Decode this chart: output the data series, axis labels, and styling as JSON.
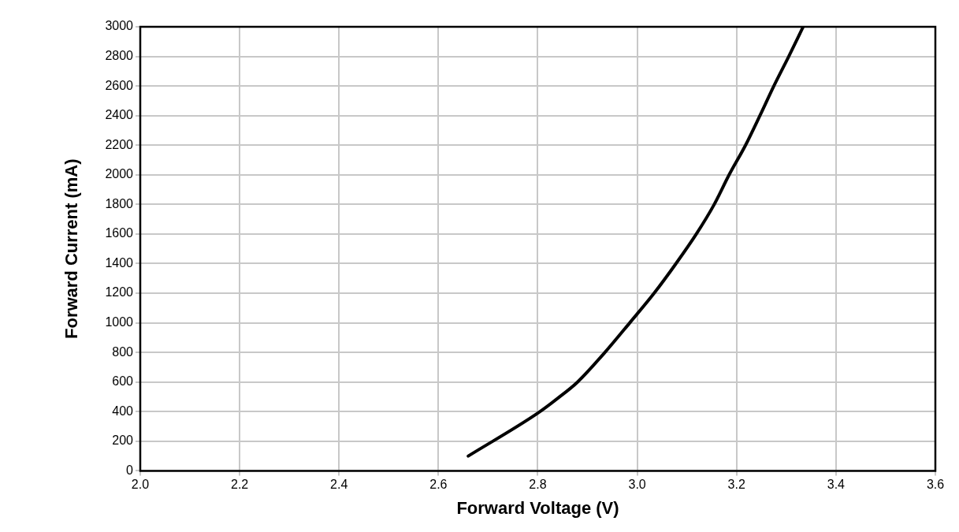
{
  "chart_data": {
    "type": "line",
    "xlabel": "Forward Voltage (V)",
    "ylabel": "Forward Current (mA)",
    "series": [
      {
        "color": "#000000",
        "x": [
          2.66,
          2.8,
          2.84,
          2.88,
          2.935,
          2.985,
          3.034,
          3.078,
          3.119,
          3.155,
          3.185,
          3.218,
          3.247,
          3.275,
          3.305,
          3.334
        ],
        "values": [
          100,
          390,
          490,
          600,
          800,
          1000,
          1200,
          1400,
          1600,
          1800,
          2000,
          2200,
          2400,
          2600,
          2800,
          3000
        ]
      }
    ],
    "xlim": [
      2.0,
      3.6
    ],
    "xticks": [
      {
        "value": 2.0,
        "label": "2.0"
      },
      {
        "value": 2.2,
        "label": "2.2"
      },
      {
        "value": 2.4,
        "label": "2.4"
      },
      {
        "value": 2.6,
        "label": "2.6"
      },
      {
        "value": 2.8,
        "label": "2.8"
      },
      {
        "value": 3.0,
        "label": "3.0"
      },
      {
        "value": 3.2,
        "label": "3.2"
      },
      {
        "value": 3.4,
        "label": "3.4"
      },
      {
        "value": 3.6,
        "label": "3.6"
      }
    ],
    "ylim": [
      0,
      3000
    ],
    "yticks": [
      0,
      200,
      400,
      600,
      800,
      1000,
      1200,
      1400,
      1600,
      1800,
      2000,
      2200,
      2400,
      2600,
      2800,
      3000
    ],
    "grid": true,
    "legend": false,
    "marker": "none",
    "line_style": "solid"
  }
}
